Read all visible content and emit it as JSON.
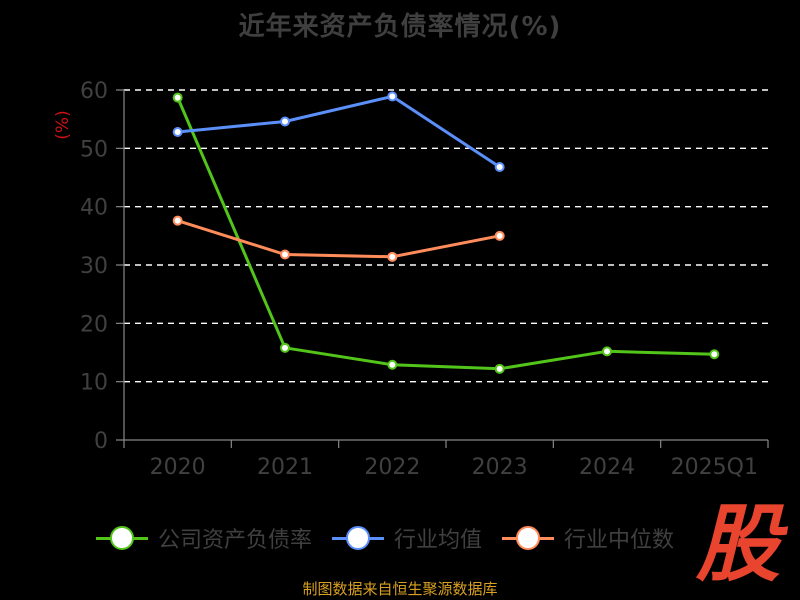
{
  "colors": {
    "background": "#000000",
    "grid": "#ffffff",
    "axis": "#888888",
    "tick_label": "#404040",
    "title": "#3f3f3f",
    "unit_label": "#cc1111",
    "source": "#d9a021",
    "watermark": "#e8442e"
  },
  "watermark": "股",
  "source_note": "制图数据来自恒生聚源数据库",
  "chart_data": {
    "type": "line",
    "title": "近年来资产负债率情况(%)",
    "ylabel": "(%)",
    "xlabel": "",
    "ylim": [
      0,
      60
    ],
    "yticks": [
      0,
      10,
      20,
      30,
      40,
      50,
      60
    ],
    "grid": true,
    "grid_style": "dashed",
    "legend_position": "bottom",
    "categories": [
      "2020",
      "2021",
      "2022",
      "2023",
      "2024",
      "2025Q1"
    ],
    "series": [
      {
        "name": "公司资产负债率",
        "color": "#52c41a",
        "values": [
          58.7,
          15.8,
          12.9,
          12.2,
          15.2,
          14.7
        ]
      },
      {
        "name": "行业均值",
        "color": "#5b8ff9",
        "values": [
          52.8,
          54.6,
          58.9,
          46.8,
          null,
          null
        ]
      },
      {
        "name": "行业中位数",
        "color": "#ff8c5a",
        "values": [
          37.6,
          31.8,
          31.4,
          35.0,
          null,
          null
        ]
      }
    ]
  }
}
